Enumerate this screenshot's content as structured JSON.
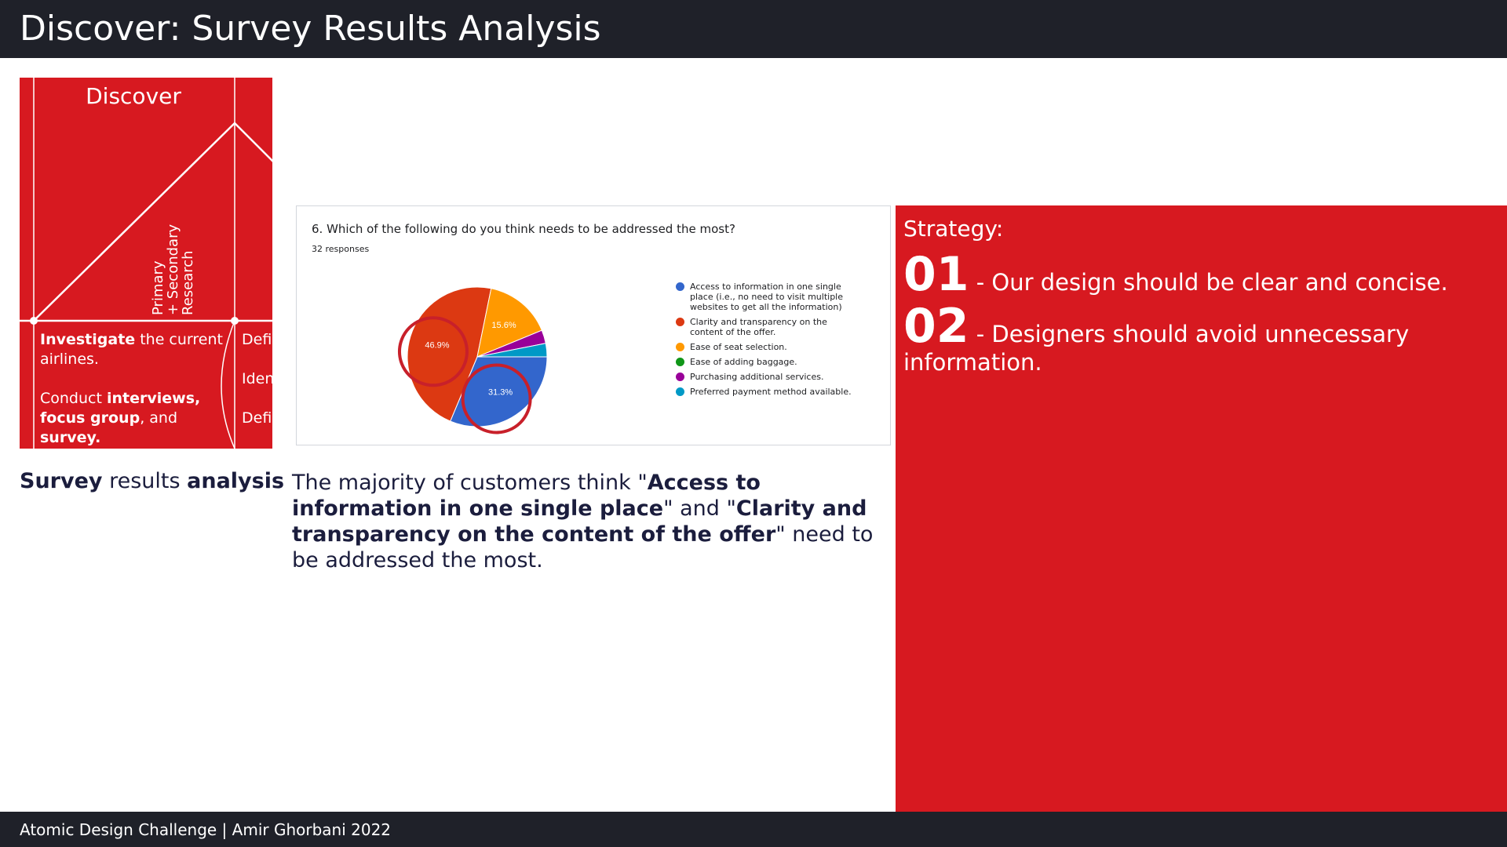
{
  "header": {
    "title": "Discover: Survey Results Analysis"
  },
  "footer": {
    "text": "Atomic Design Challenge | Amir Ghorbani 2022"
  },
  "diagram": {
    "title": "Discover",
    "vertical_label": "Primary\n+ Secondary\nResearch",
    "col1_p1": [
      {
        "t": "Investigate",
        "b": true
      },
      {
        "t": " the current airlines.",
        "b": false
      }
    ],
    "col1_p2": [
      {
        "t": "Conduct ",
        "b": false
      },
      {
        "t": "interviews,",
        "b": true
      },
      {
        "t": " ",
        "b": false
      },
      {
        "t": "focus group",
        "b": true
      },
      {
        "t": ", and ",
        "b": false
      },
      {
        "t": "survey.",
        "b": true
      }
    ],
    "col2": [
      "Defi",
      "Iden",
      "Defi"
    ],
    "colors": {
      "background": "#d71920",
      "lines": "#ffffff"
    }
  },
  "survey": {
    "question": "6. Which of the following do you think needs to be addressed the most?",
    "responses": "32 responses"
  },
  "chart_data": {
    "type": "pie",
    "title": "6. Which of the following do you think needs to be addressed the most?",
    "slices": [
      {
        "label": "Access to information in one single place (i.e., no need to visit multiple websites to get all the information)",
        "value": 31.3,
        "color": "#3366cc",
        "data_label": "31.3%"
      },
      {
        "label": "Clarity and transparency on the content of the offer.",
        "value": 46.9,
        "color": "#dc3912",
        "data_label": "46.9%"
      },
      {
        "label": "Ease of seat selection.",
        "value": 15.6,
        "color": "#ff9900",
        "data_label": "15.6%"
      },
      {
        "label": "Ease of adding baggage.",
        "value": 0,
        "color": "#109618",
        "data_label": ""
      },
      {
        "label": "Purchasing additional services.",
        "value": 3.1,
        "color": "#990099",
        "data_label": ""
      },
      {
        "label": "Preferred payment method available.",
        "value": 3.1,
        "color": "#0099c6",
        "data_label": ""
      }
    ],
    "highlighted": [
      "46.9%",
      "31.3%"
    ],
    "highlight_color": "#c8202a",
    "legend_position": "right"
  },
  "left_caption": [
    {
      "t": "Survey",
      "b": true
    },
    {
      "t": " results ",
      "b": false
    },
    {
      "t": "analysis",
      "b": true
    }
  ],
  "mid_caption": [
    {
      "t": "The majority of customers think \"",
      "b": false
    },
    {
      "t": "Access to information in one single place",
      "b": true
    },
    {
      "t": "\" and \"",
      "b": false
    },
    {
      "t": "Clarity and transparency on the content of the offer",
      "b": true
    },
    {
      "t": "\" need to be addressed the most.",
      "b": false
    }
  ],
  "strategy": {
    "title": "Strategy:",
    "items": [
      {
        "num": "01",
        "text": " - Our design should be clear and concise."
      },
      {
        "num": "02",
        "text": " - Designers should avoid unnecessary information."
      }
    ]
  },
  "colors": {
    "accent": "#d71920",
    "dark_bar": "#1f2129",
    "caption_text": "#1b1d3d"
  }
}
